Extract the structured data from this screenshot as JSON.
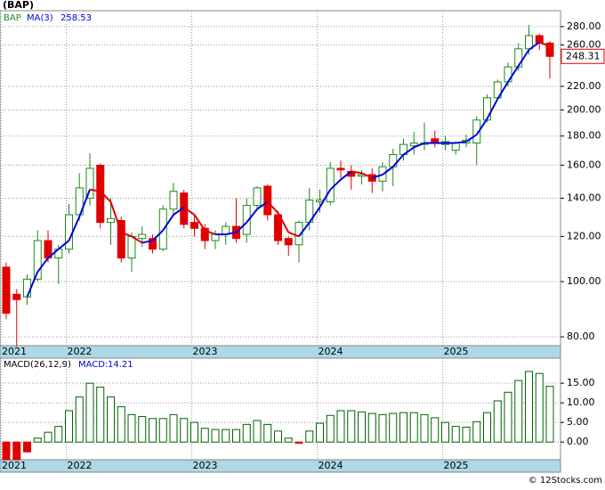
{
  "title": "(BAP)",
  "footer": "© 12Stocks.com",
  "chart_data": [
    {
      "type": "candlestick",
      "name": "BAP",
      "ma_name": "MA(3)",
      "log_scale": true,
      "grid": true,
      "up_color": "#1a8a1a",
      "down_color": "#e00000",
      "ma_up_color": "#0000dd",
      "ma_down_color": "#e00000",
      "categories": [
        "2021",
        null,
        null,
        null,
        null,
        null,
        "2022",
        null,
        null,
        null,
        null,
        null,
        null,
        null,
        null,
        null,
        null,
        null,
        "2023",
        null,
        null,
        null,
        null,
        null,
        null,
        null,
        null,
        null,
        null,
        null,
        "2024",
        null,
        null,
        null,
        null,
        null,
        null,
        null,
        null,
        null,
        null,
        null,
        "2025",
        null,
        null,
        null,
        null,
        null,
        null,
        null,
        null,
        null,
        null
      ],
      "open": [
        106,
        95,
        94,
        101,
        118,
        110,
        114,
        131,
        140,
        160,
        127,
        128,
        110,
        119,
        119,
        114,
        134,
        143,
        127,
        124,
        118,
        121,
        125,
        121,
        136,
        147,
        131,
        119,
        116,
        127,
        138,
        138,
        158,
        156,
        153,
        154,
        150,
        159,
        167,
        173,
        174,
        178,
        174,
        170,
        175,
        175,
        192,
        210,
        224,
        238,
        256,
        270,
        262
      ],
      "high": [
        108,
        97,
        103,
        123,
        123,
        116,
        137,
        155,
        168,
        161,
        140,
        130,
        122,
        125,
        121,
        136,
        149,
        145,
        131,
        126,
        123,
        127,
        140,
        140,
        147,
        148,
        133,
        120,
        128,
        146,
        145,
        162,
        163,
        160,
        157,
        158,
        162,
        171,
        178,
        183,
        190,
        184,
        180,
        176,
        181,
        195,
        213,
        226,
        242,
        262,
        282,
        272,
        264
      ],
      "low": [
        86,
        77,
        91,
        100,
        108,
        99,
        112,
        128,
        136,
        124,
        116,
        108,
        104,
        115,
        112,
        113,
        130,
        124,
        120,
        114,
        114,
        116,
        117,
        117,
        133,
        128,
        116,
        111,
        108,
        123,
        132,
        136,
        152,
        145,
        148,
        143,
        144,
        147,
        163,
        167,
        170,
        172,
        170,
        167,
        172,
        160,
        190,
        208,
        220,
        234,
        250,
        255,
        227
      ],
      "close": [
        88,
        93,
        101,
        118,
        110,
        114,
        131,
        146,
        158,
        127,
        129,
        110,
        120,
        121,
        114,
        134,
        144,
        126,
        124,
        118,
        121,
        125,
        119,
        136,
        146,
        131,
        118,
        116,
        127,
        139,
        139,
        158,
        157,
        153,
        154,
        150,
        159,
        167,
        174,
        175,
        175,
        175,
        176,
        175,
        177,
        192,
        210,
        224,
        238,
        256,
        270,
        262,
        248.31
      ],
      "ma": [
        null,
        null,
        94,
        104,
        110,
        114,
        118,
        130,
        145,
        144,
        138,
        122,
        120,
        117,
        118,
        123,
        131,
        135,
        131,
        123,
        121,
        121,
        122,
        127,
        134,
        138,
        132,
        122,
        120,
        127,
        135,
        145,
        151,
        156,
        155,
        152,
        154,
        159,
        167,
        172,
        175,
        175,
        175,
        175,
        176,
        181,
        193,
        209,
        224,
        239,
        255,
        263,
        258.53
      ],
      "ylim": [
        77.2,
        298.6
      ],
      "yticks": [
        {
          "value": 80,
          "label": "80.00"
        },
        {
          "value": 100,
          "label": "100.00"
        },
        {
          "value": 120,
          "label": "120.00"
        },
        {
          "value": 140,
          "label": "140.00"
        },
        {
          "value": 160,
          "label": "160.00"
        },
        {
          "value": 180,
          "label": "180.00"
        },
        {
          "value": 200,
          "label": "200.00"
        },
        {
          "value": 220,
          "label": "220.00"
        },
        {
          "value": 260,
          "label": "260.00"
        },
        {
          "value": 280,
          "label": "280.00"
        }
      ]
    },
    {
      "type": "bar",
      "name": "MACD(26,12,9)",
      "value_prefix": "MACD:",
      "grid": true,
      "pos_color": "#006400",
      "neg_color": "#e00000",
      "categories": [
        "2021",
        null,
        null,
        null,
        null,
        null,
        "2022",
        null,
        null,
        null,
        null,
        null,
        null,
        null,
        null,
        null,
        null,
        null,
        "2023",
        null,
        null,
        null,
        null,
        null,
        null,
        null,
        null,
        null,
        null,
        null,
        "2024",
        null,
        null,
        null,
        null,
        null,
        null,
        null,
        null,
        null,
        null,
        null,
        "2025",
        null,
        null,
        null,
        null,
        null,
        null,
        null,
        null,
        null,
        null
      ],
      "values": [
        -4.5,
        -4.5,
        -2.5,
        1,
        2.5,
        4,
        8,
        11.5,
        15,
        14,
        11.5,
        9,
        7,
        6.5,
        6,
        6,
        7,
        6,
        5,
        3.5,
        3.2,
        3.2,
        3.2,
        4.5,
        5.5,
        4.5,
        2.8,
        1,
        -0.3,
        2.8,
        4.8,
        6.8,
        8,
        8,
        7.7,
        7.3,
        7,
        7.3,
        7.5,
        7.5,
        7,
        6.2,
        5,
        4,
        3.8,
        5.2,
        7.5,
        10.5,
        12.7,
        15.7,
        18,
        17.5,
        14.21
      ],
      "ylim": [
        -4.5,
        21.4
      ],
      "yticks": [
        {
          "value": 0,
          "label": "0.00"
        },
        {
          "value": 5,
          "label": "5.00"
        },
        {
          "value": 10,
          "label": "10.00"
        },
        {
          "value": 15,
          "label": "15.00"
        }
      ]
    }
  ]
}
